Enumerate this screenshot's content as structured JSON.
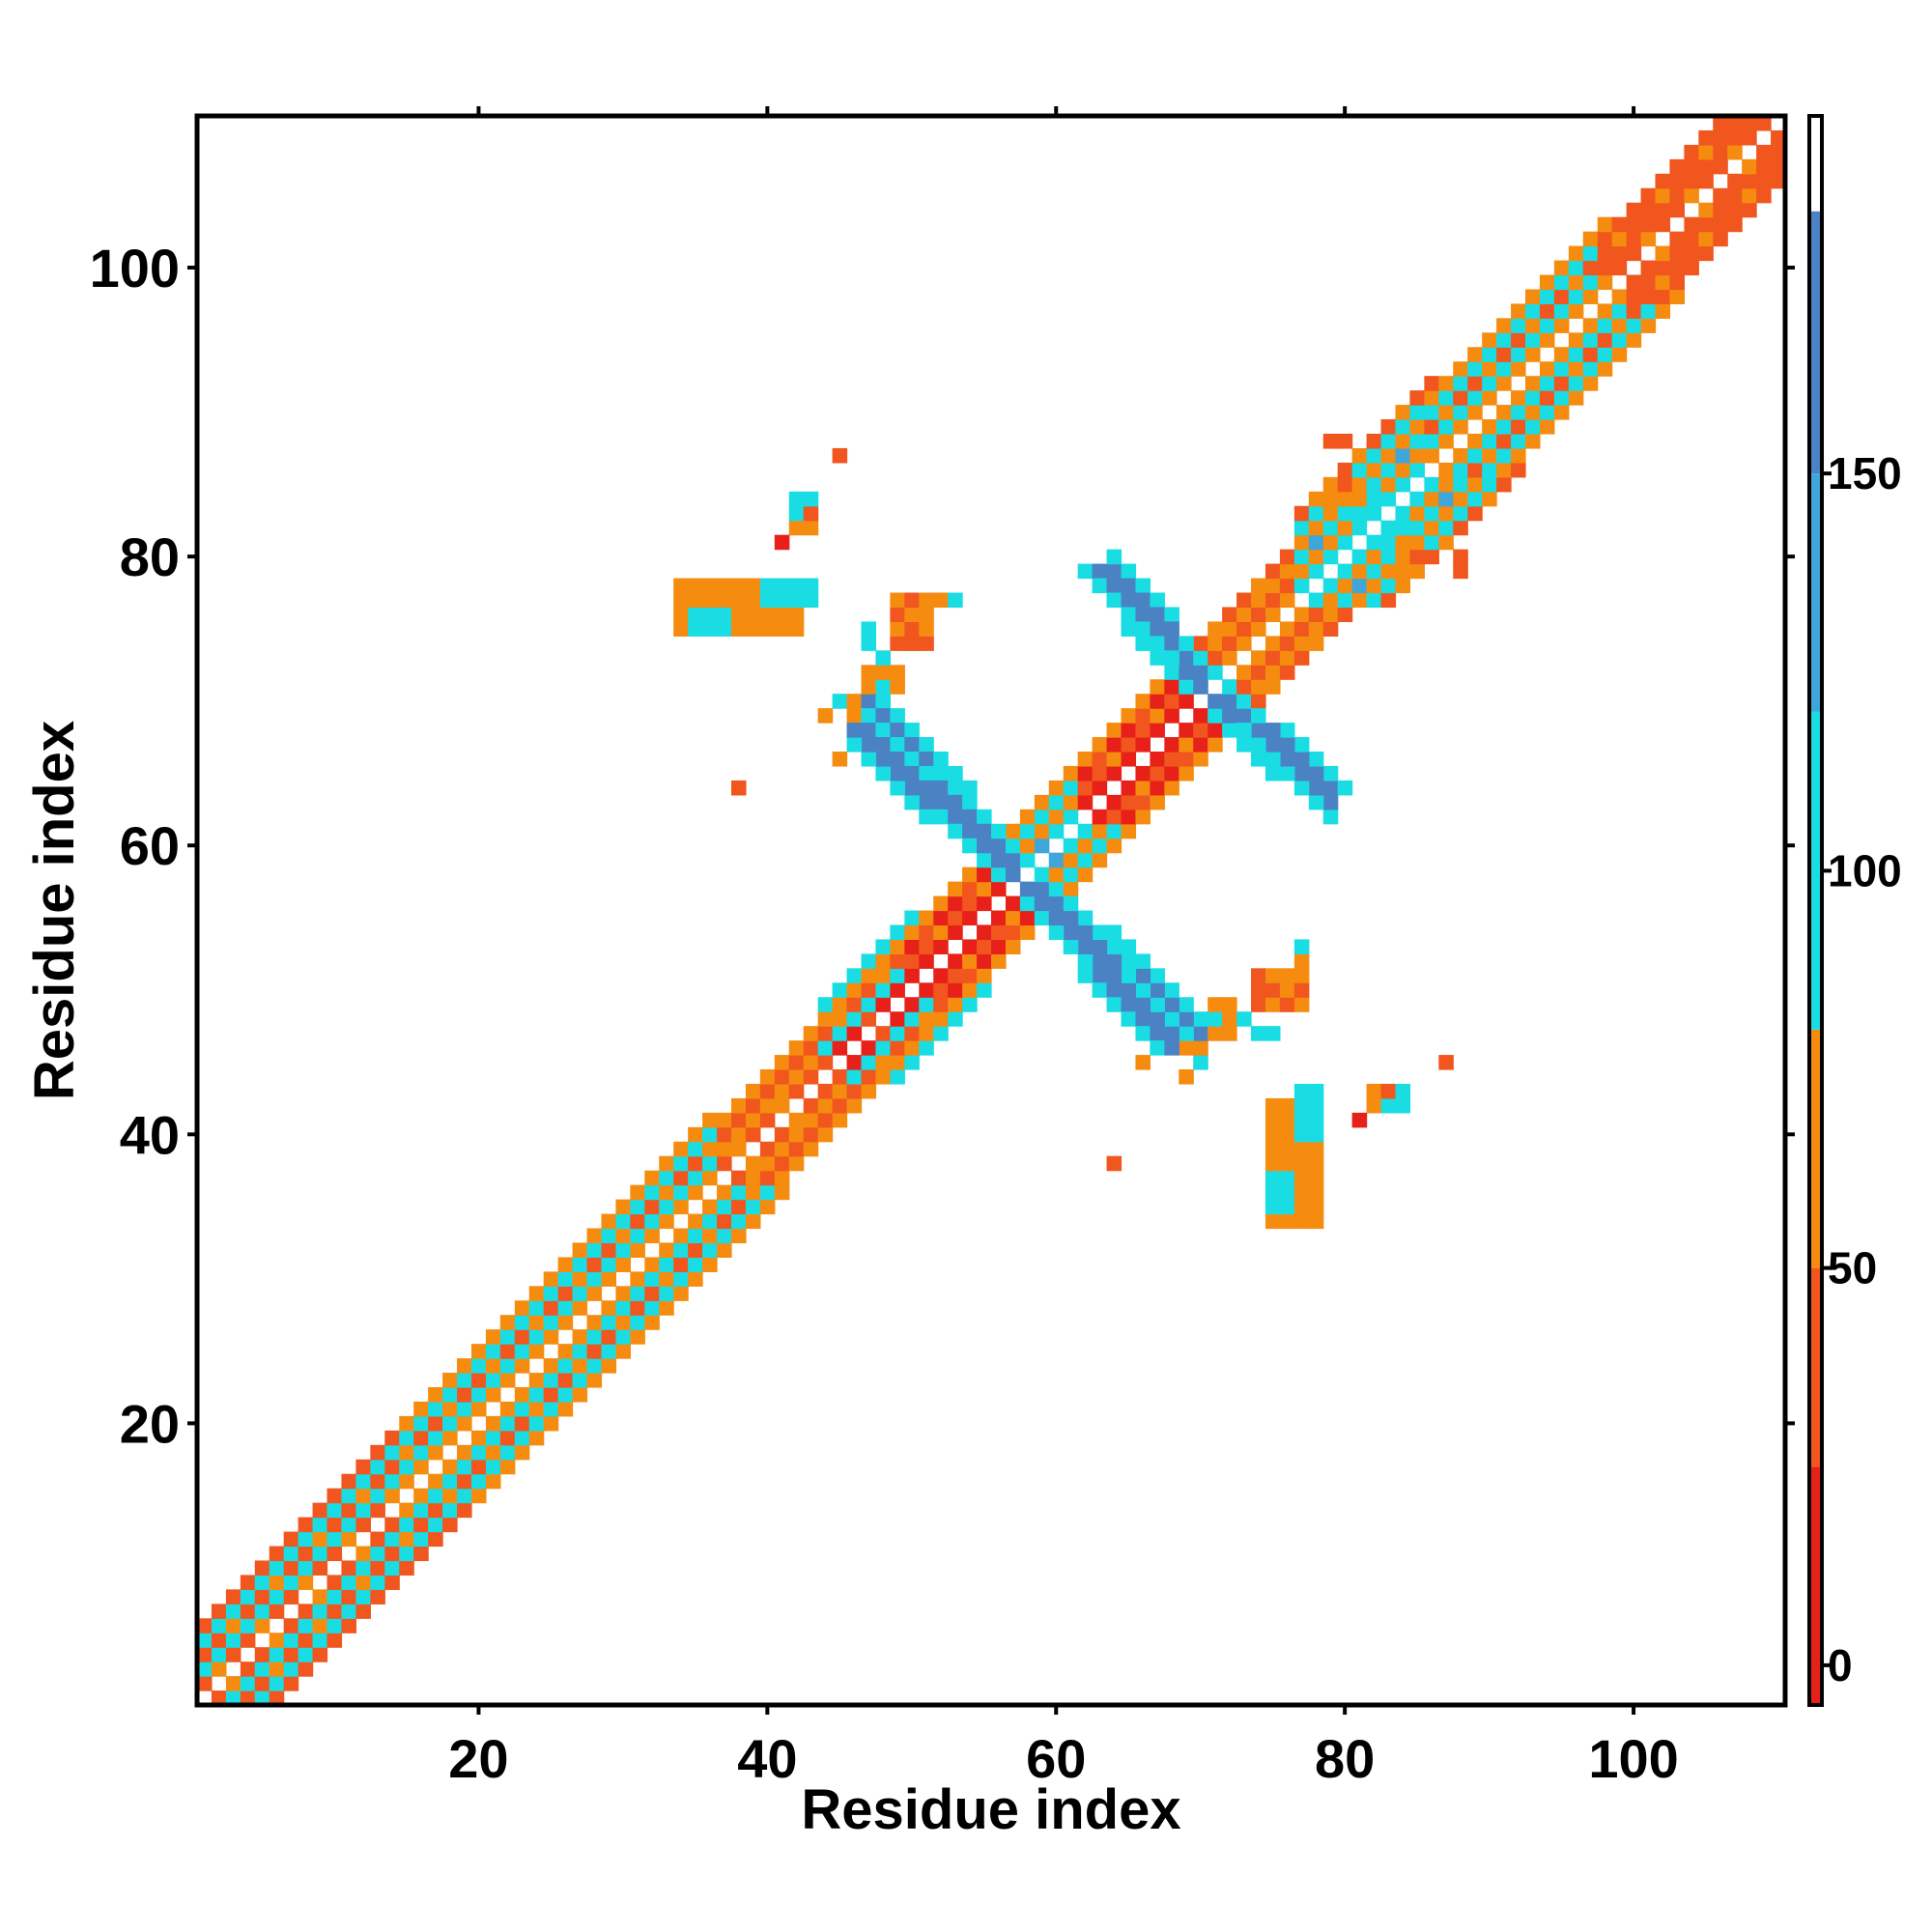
{
  "chart_data": {
    "type": "heatmap",
    "title": "",
    "xlabel": "Residue index",
    "ylabel": "Residue index",
    "xlim": [
      1,
      110
    ],
    "ylim": [
      1,
      110
    ],
    "xticks": [
      20,
      40,
      60,
      80,
      100
    ],
    "yticks": [
      20,
      40,
      60,
      80,
      100
    ],
    "grid": false,
    "colorbar": {
      "ticks": [
        0,
        50,
        100,
        150
      ],
      "range": [
        -5,
        195
      ],
      "bands": [
        {
          "from": -5,
          "to": 25,
          "color": "#e8201a"
        },
        {
          "from": 25,
          "to": 50,
          "color": "#f0561e"
        },
        {
          "from": 50,
          "to": 80,
          "color": "#f58c10"
        },
        {
          "from": 80,
          "to": 120,
          "color": "#19dde3"
        },
        {
          "from": 120,
          "to": 150,
          "color": "#3ea6d8"
        },
        {
          "from": 150,
          "to": 183,
          "color": "#4b82c4"
        },
        {
          "from": 183,
          "to": 195,
          "color": "#ffffff"
        }
      ]
    },
    "diagonal_bands": [
      {
        "from": 1,
        "to": 14,
        "pattern": [
          [
            1,
            45
          ],
          [
            2,
            100
          ],
          [
            3,
            40
          ],
          [
            4,
            95
          ],
          [
            5,
            35
          ]
        ]
      },
      {
        "from": 15,
        "to": 36,
        "pattern": [
          [
            1,
            60
          ],
          [
            2,
            100
          ],
          [
            3,
            45
          ],
          [
            4,
            100
          ],
          [
            5,
            60
          ]
        ]
      },
      {
        "from": 37,
        "to": 44,
        "pattern": [
          [
            1,
            40
          ],
          [
            2,
            60
          ],
          [
            3,
            30
          ],
          [
            4,
            55
          ]
        ]
      },
      {
        "from": 44,
        "to": 50,
        "pattern": [
          [
            1,
            15
          ],
          [
            2,
            100
          ],
          [
            3,
            45
          ],
          [
            4,
            60
          ],
          [
            5,
            100
          ]
        ]
      },
      {
        "from": 50,
        "to": 57,
        "pattern": [
          [
            1,
            10
          ],
          [
            2,
            45
          ],
          [
            3,
            15
          ],
          [
            4,
            55
          ]
        ]
      },
      {
        "from": 57,
        "to": 62,
        "pattern": [
          [
            1,
            110
          ],
          [
            2,
            60
          ],
          [
            3,
            100
          ],
          [
            4,
            55
          ]
        ]
      },
      {
        "from": 62,
        "to": 70,
        "pattern": [
          [
            1,
            10
          ],
          [
            2,
            45
          ],
          [
            3,
            15
          ],
          [
            4,
            50
          ]
        ]
      },
      {
        "from": 70,
        "to": 77,
        "pattern": [
          [
            1,
            60
          ],
          [
            2,
            30
          ],
          [
            3,
            50
          ],
          [
            4,
            40
          ]
        ]
      },
      {
        "from": 77,
        "to": 86,
        "pattern": [
          [
            1,
            100
          ],
          [
            2,
            55
          ],
          [
            3,
            110
          ],
          [
            4,
            60
          ],
          [
            5,
            100
          ],
          [
            6,
            45
          ]
        ]
      },
      {
        "from": 86,
        "to": 98,
        "pattern": [
          [
            1,
            55
          ],
          [
            2,
            100
          ],
          [
            3,
            40
          ],
          [
            4,
            100
          ],
          [
            5,
            60
          ]
        ]
      },
      {
        "from": 98,
        "to": 110,
        "pattern": [
          [
            1,
            45
          ],
          [
            2,
            25
          ],
          [
            3,
            40
          ],
          [
            4,
            35
          ]
        ]
      }
    ],
    "cross_bands": [
      {
        "from": [
          47,
          70
        ],
        "to": [
          58,
          58
        ],
        "width": 4,
        "value": 160
      },
      {
        "from": [
          58,
          58
        ],
        "to": [
          69,
          46
        ],
        "width": 4,
        "value": 160
      },
      {
        "from": [
          64,
          79
        ],
        "to": [
          70,
          72
        ],
        "width": 4,
        "value": 160
      },
      {
        "from": [
          70,
          72
        ],
        "to": [
          79,
          64
        ],
        "width": 4,
        "value": 160
      }
    ],
    "clusters": [
      {
        "x": [
          34,
          39
        ],
        "y": [
          75,
          78
        ],
        "value": 55
      },
      {
        "x": [
          39,
          42
        ],
        "y": [
          76,
          78
        ],
        "value": 100
      },
      {
        "x": [
          42,
          43
        ],
        "y": [
          82,
          83
        ],
        "value": 55
      },
      {
        "x": [
          42,
          43
        ],
        "y": [
          83,
          84
        ],
        "value": 100
      },
      {
        "x": [
          47,
          49
        ],
        "y": [
          71,
          72
        ],
        "value": 55
      },
      {
        "x": [
          75,
          78
        ],
        "y": [
          38,
          42
        ],
        "value": 55
      },
      {
        "x": [
          75,
          76
        ],
        "y": [
          35,
          37
        ],
        "value": 100
      },
      {
        "x": [
          77,
          78
        ],
        "y": [
          40,
          43
        ],
        "value": 100
      },
      {
        "x": [
          74,
          77
        ],
        "y": [
          49,
          51
        ],
        "value": 45
      },
      {
        "x": [
          81,
          83
        ],
        "y": [
          81,
          84
        ],
        "value": 110
      },
      {
        "x": [
          79,
          81
        ],
        "y": [
          84,
          85
        ],
        "value": 55
      }
    ],
    "points": [
      [
        45,
        87,
        45
      ],
      [
        41,
        81,
        20
      ],
      [
        38,
        64,
        45
      ],
      [
        44,
        69,
        60
      ],
      [
        46,
        69,
        60
      ],
      [
        47,
        75,
        100
      ],
      [
        47,
        74,
        80
      ],
      [
        50,
        74,
        45
      ],
      [
        51,
        76,
        50
      ],
      [
        52,
        77,
        60
      ],
      [
        64,
        38,
        45
      ],
      [
        81,
        41,
        20
      ],
      [
        83,
        43,
        45
      ],
      [
        84,
        43,
        100
      ],
      [
        87,
        45,
        45
      ],
      [
        88,
        79,
        45
      ],
      [
        80,
        88,
        45
      ],
      [
        73,
        48,
        80
      ],
      [
        77,
        53,
        80
      ],
      [
        71,
        48,
        80
      ],
      [
        70,
        46,
        60
      ],
      [
        66,
        45,
        60
      ],
      [
        85,
        80,
        45
      ]
    ]
  }
}
